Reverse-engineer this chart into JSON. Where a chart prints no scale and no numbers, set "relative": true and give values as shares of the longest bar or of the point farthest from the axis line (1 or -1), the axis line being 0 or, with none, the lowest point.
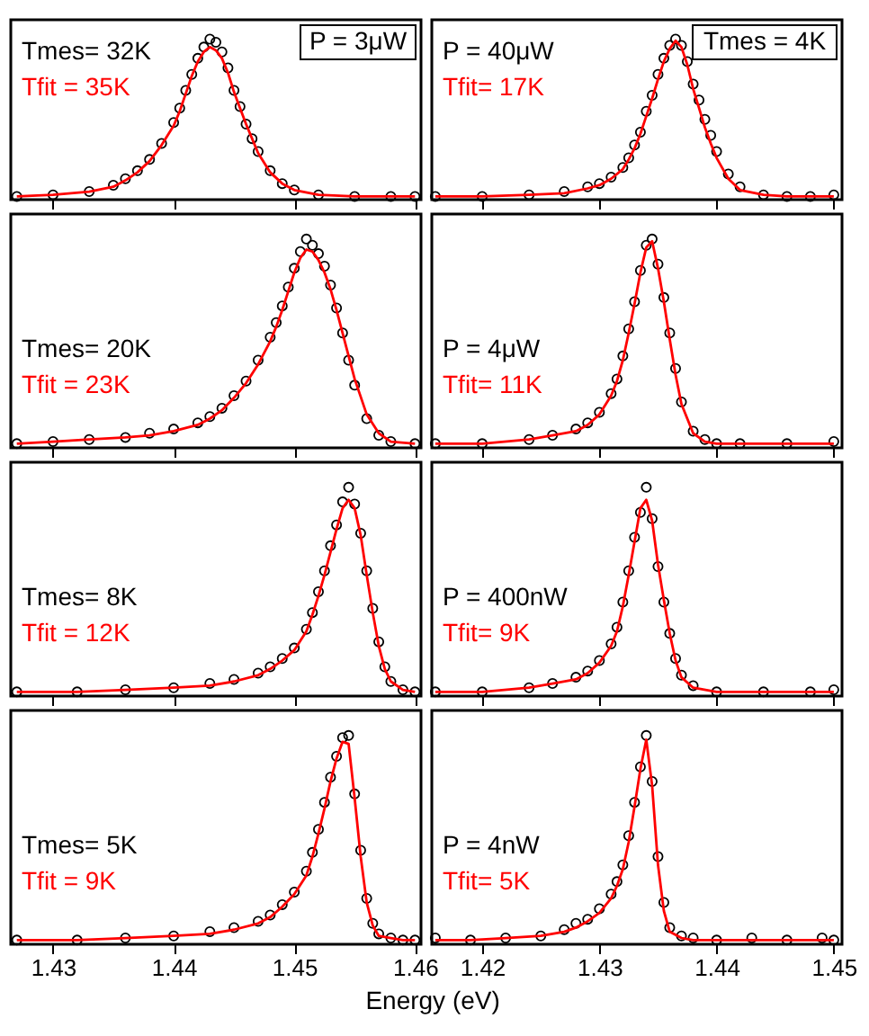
{
  "chart_data": [
    {
      "type": "scatter",
      "relative": true,
      "xlim": [
        1.4265,
        1.4605
      ],
      "xticks": [
        1.43,
        1.44,
        1.45,
        1.46
      ],
      "tick_labels": false,
      "annotations": [
        "Tmes= 32K",
        "Tfit  = 35K",
        "P = 3μW"
      ],
      "series": [
        {
          "color": "#000000",
          "marker": "circle",
          "x": [
            1.427,
            1.43,
            1.433,
            1.435,
            1.436,
            1.437,
            1.438,
            1.439,
            1.44,
            1.4405,
            1.441,
            1.4415,
            1.442,
            1.4425,
            1.443,
            1.4435,
            1.444,
            1.4445,
            1.445,
            1.4455,
            1.446,
            1.4465,
            1.447,
            1.448,
            1.449,
            1.45,
            1.452,
            1.455,
            1.458,
            1.46
          ],
          "values": [
            0.02,
            0.03,
            0.05,
            0.09,
            0.13,
            0.18,
            0.25,
            0.35,
            0.48,
            0.57,
            0.68,
            0.78,
            0.88,
            0.95,
            1.0,
            0.98,
            0.92,
            0.82,
            0.68,
            0.58,
            0.47,
            0.38,
            0.3,
            0.18,
            0.1,
            0.06,
            0.03,
            0.02,
            0.02,
            0.02
          ]
        },
        {
          "type": "line",
          "color": "#ff0000",
          "line_style": "solid",
          "x": [
            1.427,
            1.43,
            1.433,
            1.435,
            1.436,
            1.437,
            1.438,
            1.439,
            1.44,
            1.4405,
            1.441,
            1.4415,
            1.442,
            1.4425,
            1.443,
            1.4435,
            1.444,
            1.4445,
            1.445,
            1.4455,
            1.446,
            1.4465,
            1.447,
            1.448,
            1.449,
            1.45,
            1.452,
            1.455,
            1.458,
            1.46
          ],
          "values": [
            0.02,
            0.03,
            0.05,
            0.08,
            0.12,
            0.17,
            0.24,
            0.34,
            0.46,
            0.55,
            0.66,
            0.77,
            0.86,
            0.92,
            0.95,
            0.93,
            0.88,
            0.79,
            0.67,
            0.57,
            0.47,
            0.38,
            0.29,
            0.17,
            0.1,
            0.06,
            0.03,
            0.02,
            0.02,
            0.02
          ]
        }
      ]
    },
    {
      "type": "scatter",
      "relative": true,
      "xlim": [
        1.4157,
        1.4507
      ],
      "xticks": [
        1.42,
        1.43,
        1.44,
        1.45
      ],
      "tick_labels": false,
      "annotations": [
        "P = 40μW",
        "Tfit= 17K",
        "Tmes = 4K"
      ],
      "series": [
        {
          "color": "#000000",
          "marker": "circle",
          "x": [
            1.416,
            1.42,
            1.424,
            1.427,
            1.429,
            1.43,
            1.431,
            1.432,
            1.4325,
            1.433,
            1.4335,
            1.434,
            1.4345,
            1.435,
            1.4355,
            1.436,
            1.4365,
            1.437,
            1.4375,
            1.438,
            1.4385,
            1.439,
            1.4395,
            1.44,
            1.441,
            1.442,
            1.444,
            1.446,
            1.448,
            1.45
          ],
          "values": [
            0.02,
            0.02,
            0.03,
            0.05,
            0.08,
            0.1,
            0.14,
            0.2,
            0.26,
            0.34,
            0.42,
            0.55,
            0.65,
            0.78,
            0.88,
            0.96,
            1.0,
            0.96,
            0.86,
            0.72,
            0.62,
            0.5,
            0.4,
            0.3,
            0.16,
            0.08,
            0.03,
            0.02,
            0.02,
            0.03
          ]
        },
        {
          "type": "line",
          "color": "#ff0000",
          "line_style": "solid",
          "x": [
            1.416,
            1.42,
            1.424,
            1.427,
            1.429,
            1.43,
            1.431,
            1.432,
            1.4325,
            1.433,
            1.4335,
            1.434,
            1.4345,
            1.435,
            1.4355,
            1.436,
            1.4365,
            1.437,
            1.4375,
            1.438,
            1.4385,
            1.439,
            1.4395,
            1.44,
            1.441,
            1.442,
            1.444,
            1.446,
            1.448,
            1.45
          ],
          "values": [
            0.02,
            0.02,
            0.03,
            0.04,
            0.07,
            0.09,
            0.13,
            0.19,
            0.25,
            0.32,
            0.41,
            0.52,
            0.63,
            0.75,
            0.86,
            0.94,
            0.99,
            0.95,
            0.84,
            0.69,
            0.57,
            0.45,
            0.35,
            0.26,
            0.13,
            0.06,
            0.03,
            0.02,
            0.02,
            0.02
          ]
        }
      ]
    },
    {
      "type": "scatter",
      "relative": true,
      "xlim": [
        1.4265,
        1.4605
      ],
      "xticks": [
        1.43,
        1.44,
        1.45,
        1.46
      ],
      "tick_labels": false,
      "annotations": [
        "Tmes= 20K",
        "Tfit  = 23K"
      ],
      "series": [
        {
          "color": "#000000",
          "marker": "circle",
          "x": [
            1.427,
            1.43,
            1.433,
            1.436,
            1.438,
            1.44,
            1.442,
            1.443,
            1.444,
            1.445,
            1.446,
            1.447,
            1.448,
            1.4485,
            1.449,
            1.4495,
            1.45,
            1.4505,
            1.451,
            1.4515,
            1.452,
            1.4525,
            1.453,
            1.4535,
            1.454,
            1.4545,
            1.455,
            1.456,
            1.457,
            1.458,
            1.46
          ],
          "values": [
            0.02,
            0.03,
            0.04,
            0.05,
            0.07,
            0.09,
            0.12,
            0.15,
            0.19,
            0.25,
            0.32,
            0.42,
            0.53,
            0.6,
            0.68,
            0.77,
            0.86,
            0.94,
            1.0,
            0.97,
            0.93,
            0.87,
            0.78,
            0.67,
            0.55,
            0.42,
            0.3,
            0.14,
            0.06,
            0.03,
            0.02
          ]
        },
        {
          "type": "line",
          "color": "#ff0000",
          "line_style": "solid",
          "x": [
            1.427,
            1.43,
            1.433,
            1.436,
            1.438,
            1.44,
            1.442,
            1.443,
            1.444,
            1.445,
            1.446,
            1.447,
            1.448,
            1.4485,
            1.449,
            1.4495,
            1.45,
            1.4505,
            1.451,
            1.4515,
            1.452,
            1.4525,
            1.453,
            1.4535,
            1.454,
            1.4545,
            1.455,
            1.456,
            1.457,
            1.458,
            1.46
          ],
          "values": [
            0.02,
            0.03,
            0.04,
            0.05,
            0.06,
            0.08,
            0.11,
            0.14,
            0.18,
            0.24,
            0.31,
            0.4,
            0.51,
            0.58,
            0.66,
            0.75,
            0.84,
            0.91,
            0.95,
            0.94,
            0.9,
            0.84,
            0.76,
            0.66,
            0.55,
            0.44,
            0.33,
            0.16,
            0.07,
            0.03,
            0.02
          ]
        }
      ]
    },
    {
      "type": "scatter",
      "relative": true,
      "xlim": [
        1.4157,
        1.4507
      ],
      "xticks": [
        1.42,
        1.43,
        1.44,
        1.45
      ],
      "tick_labels": false,
      "annotations": [
        "P = 4μW",
        "Tfit= 11K"
      ],
      "series": [
        {
          "color": "#000000",
          "marker": "circle",
          "x": [
            1.416,
            1.42,
            1.424,
            1.426,
            1.428,
            1.429,
            1.43,
            1.431,
            1.4315,
            1.432,
            1.4325,
            1.433,
            1.4335,
            1.434,
            1.4345,
            1.435,
            1.4355,
            1.436,
            1.4365,
            1.437,
            1.438,
            1.439,
            1.44,
            1.442,
            1.446,
            1.45
          ],
          "values": [
            0.02,
            0.02,
            0.04,
            0.06,
            0.09,
            0.12,
            0.17,
            0.26,
            0.33,
            0.44,
            0.57,
            0.7,
            0.85,
            0.97,
            1.0,
            0.88,
            0.72,
            0.55,
            0.38,
            0.22,
            0.08,
            0.04,
            0.02,
            0.02,
            0.02,
            0.03
          ]
        },
        {
          "type": "line",
          "color": "#ff0000",
          "line_style": "solid",
          "x": [
            1.416,
            1.42,
            1.424,
            1.426,
            1.428,
            1.429,
            1.43,
            1.431,
            1.4315,
            1.432,
            1.4325,
            1.433,
            1.4335,
            1.434,
            1.4345,
            1.435,
            1.4355,
            1.436,
            1.4365,
            1.437,
            1.438,
            1.439,
            1.44,
            1.442,
            1.446,
            1.45
          ],
          "values": [
            0.02,
            0.02,
            0.04,
            0.06,
            0.08,
            0.11,
            0.16,
            0.25,
            0.32,
            0.42,
            0.55,
            0.69,
            0.84,
            0.96,
            0.99,
            0.86,
            0.7,
            0.52,
            0.35,
            0.21,
            0.07,
            0.03,
            0.02,
            0.02,
            0.02,
            0.02
          ]
        }
      ]
    },
    {
      "type": "scatter",
      "relative": true,
      "xlim": [
        1.4265,
        1.4605
      ],
      "xticks": [
        1.43,
        1.44,
        1.45,
        1.46
      ],
      "tick_labels": false,
      "annotations": [
        "Tmes= 8K",
        "Tfit  = 12K"
      ],
      "series": [
        {
          "color": "#000000",
          "marker": "circle",
          "x": [
            1.427,
            1.432,
            1.436,
            1.44,
            1.443,
            1.445,
            1.447,
            1.448,
            1.449,
            1.45,
            1.451,
            1.4515,
            1.452,
            1.4525,
            1.453,
            1.4535,
            1.454,
            1.4545,
            1.455,
            1.4555,
            1.456,
            1.4565,
            1.457,
            1.4575,
            1.458,
            1.459,
            1.46
          ],
          "values": [
            0.02,
            0.02,
            0.03,
            0.04,
            0.06,
            0.08,
            0.11,
            0.14,
            0.18,
            0.23,
            0.32,
            0.4,
            0.5,
            0.6,
            0.72,
            0.82,
            0.93,
            1.0,
            0.92,
            0.78,
            0.6,
            0.42,
            0.26,
            0.14,
            0.07,
            0.03,
            0.02
          ]
        },
        {
          "type": "line",
          "color": "#ff0000",
          "line_style": "solid",
          "x": [
            1.427,
            1.432,
            1.436,
            1.44,
            1.443,
            1.445,
            1.447,
            1.448,
            1.449,
            1.45,
            1.451,
            1.4515,
            1.452,
            1.4525,
            1.453,
            1.4535,
            1.454,
            1.4545,
            1.455,
            1.4555,
            1.456,
            1.4565,
            1.457,
            1.4575,
            1.458,
            1.459,
            1.46
          ],
          "values": [
            0.02,
            0.02,
            0.03,
            0.04,
            0.05,
            0.07,
            0.1,
            0.13,
            0.17,
            0.22,
            0.31,
            0.39,
            0.48,
            0.58,
            0.69,
            0.8,
            0.9,
            0.94,
            0.9,
            0.77,
            0.58,
            0.4,
            0.24,
            0.13,
            0.07,
            0.03,
            0.02
          ]
        }
      ]
    },
    {
      "type": "scatter",
      "relative": true,
      "xlim": [
        1.4157,
        1.4507
      ],
      "xticks": [
        1.42,
        1.43,
        1.44,
        1.45
      ],
      "tick_labels": false,
      "annotations": [
        "P = 400nW",
        "Tfit= 9K"
      ],
      "series": [
        {
          "color": "#000000",
          "marker": "circle",
          "x": [
            1.416,
            1.42,
            1.424,
            1.426,
            1.428,
            1.429,
            1.43,
            1.431,
            1.4315,
            1.432,
            1.4325,
            1.433,
            1.4335,
            1.434,
            1.4345,
            1.435,
            1.4355,
            1.436,
            1.4365,
            1.437,
            1.438,
            1.44,
            1.444,
            1.448,
            1.45
          ],
          "values": [
            0.02,
            0.02,
            0.04,
            0.06,
            0.09,
            0.12,
            0.17,
            0.25,
            0.33,
            0.45,
            0.6,
            0.76,
            0.88,
            1.0,
            0.85,
            0.62,
            0.45,
            0.3,
            0.18,
            0.1,
            0.05,
            0.02,
            0.02,
            0.02,
            0.03
          ]
        },
        {
          "type": "line",
          "color": "#ff0000",
          "line_style": "solid",
          "x": [
            1.416,
            1.42,
            1.424,
            1.426,
            1.428,
            1.429,
            1.43,
            1.431,
            1.4315,
            1.432,
            1.4325,
            1.433,
            1.4335,
            1.434,
            1.4345,
            1.435,
            1.4355,
            1.436,
            1.4365,
            1.437,
            1.438,
            1.44,
            1.444,
            1.448,
            1.45
          ],
          "values": [
            0.02,
            0.02,
            0.04,
            0.06,
            0.08,
            0.11,
            0.16,
            0.24,
            0.31,
            0.43,
            0.58,
            0.74,
            0.9,
            0.94,
            0.84,
            0.63,
            0.46,
            0.3,
            0.17,
            0.09,
            0.04,
            0.02,
            0.02,
            0.02,
            0.02
          ]
        }
      ]
    },
    {
      "type": "scatter",
      "relative": true,
      "xlim": [
        1.4265,
        1.4605
      ],
      "xticks": [
        1.43,
        1.44,
        1.45,
        1.46
      ],
      "tick_labels": "x",
      "xlabel": "Energy (eV)",
      "annotations": [
        "Tmes= 5K",
        "Tfit  = 9K"
      ],
      "series": [
        {
          "color": "#000000",
          "marker": "circle",
          "x": [
            1.427,
            1.432,
            1.436,
            1.44,
            1.443,
            1.445,
            1.447,
            1.448,
            1.449,
            1.45,
            1.451,
            1.4515,
            1.452,
            1.4525,
            1.453,
            1.4535,
            1.454,
            1.4545,
            1.455,
            1.4555,
            1.456,
            1.4565,
            1.457,
            1.458,
            1.459,
            1.46
          ],
          "values": [
            0.02,
            0.02,
            0.03,
            0.04,
            0.06,
            0.08,
            0.11,
            0.14,
            0.19,
            0.25,
            0.35,
            0.44,
            0.55,
            0.68,
            0.8,
            0.9,
            0.99,
            1.0,
            0.72,
            0.45,
            0.22,
            0.1,
            0.05,
            0.03,
            0.02,
            0.02
          ]
        },
        {
          "type": "line",
          "color": "#ff0000",
          "line_style": "solid",
          "x": [
            1.427,
            1.432,
            1.436,
            1.44,
            1.443,
            1.445,
            1.447,
            1.448,
            1.449,
            1.45,
            1.451,
            1.4515,
            1.452,
            1.4525,
            1.453,
            1.4535,
            1.454,
            1.4545,
            1.455,
            1.4555,
            1.456,
            1.4565,
            1.457,
            1.458,
            1.459,
            1.46
          ],
          "values": [
            0.02,
            0.02,
            0.03,
            0.04,
            0.05,
            0.07,
            0.1,
            0.13,
            0.18,
            0.24,
            0.33,
            0.42,
            0.53,
            0.65,
            0.78,
            0.89,
            0.97,
            0.96,
            0.7,
            0.42,
            0.2,
            0.09,
            0.04,
            0.03,
            0.02,
            0.02
          ]
        }
      ]
    },
    {
      "type": "scatter",
      "relative": true,
      "xlim": [
        1.4157,
        1.4507
      ],
      "xticks": [
        1.42,
        1.43,
        1.44,
        1.45
      ],
      "tick_labels": "x",
      "annotations": [
        "P = 4nW",
        "Tfit= 5K"
      ],
      "series": [
        {
          "color": "#000000",
          "marker": "circle",
          "x": [
            1.416,
            1.419,
            1.422,
            1.425,
            1.427,
            1.428,
            1.429,
            1.43,
            1.431,
            1.4315,
            1.432,
            1.4325,
            1.433,
            1.4335,
            1.434,
            1.4345,
            1.435,
            1.4355,
            1.436,
            1.437,
            1.438,
            1.44,
            1.443,
            1.446,
            1.449,
            1.45
          ],
          "values": [
            0.03,
            0.02,
            0.03,
            0.04,
            0.07,
            0.1,
            0.12,
            0.17,
            0.24,
            0.3,
            0.38,
            0.52,
            0.68,
            0.85,
            1.0,
            0.78,
            0.42,
            0.2,
            0.08,
            0.04,
            0.03,
            0.02,
            0.03,
            0.02,
            0.03,
            0.02
          ]
        },
        {
          "type": "line",
          "color": "#ff0000",
          "line_style": "solid",
          "x": [
            1.416,
            1.419,
            1.422,
            1.425,
            1.427,
            1.428,
            1.429,
            1.43,
            1.431,
            1.4315,
            1.432,
            1.4325,
            1.433,
            1.4335,
            1.434,
            1.4345,
            1.435,
            1.4355,
            1.436,
            1.437,
            1.438,
            1.44,
            1.443,
            1.446,
            1.449,
            1.45
          ],
          "values": [
            0.02,
            0.02,
            0.03,
            0.04,
            0.06,
            0.08,
            0.11,
            0.15,
            0.22,
            0.28,
            0.36,
            0.49,
            0.66,
            0.84,
            0.98,
            0.76,
            0.38,
            0.16,
            0.06,
            0.03,
            0.02,
            0.02,
            0.02,
            0.02,
            0.02,
            0.02
          ]
        }
      ]
    }
  ]
}
